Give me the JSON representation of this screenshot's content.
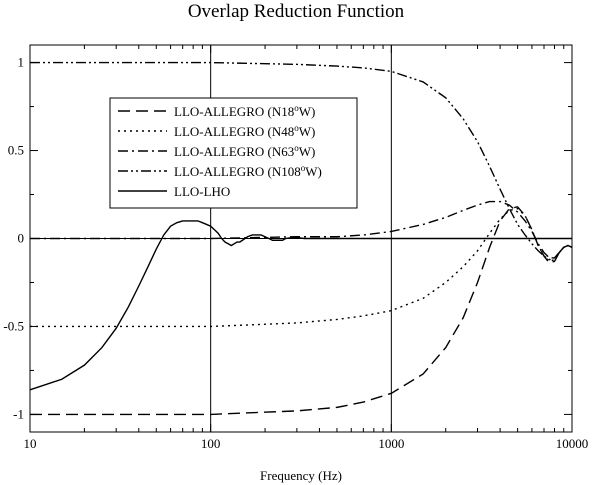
{
  "chart_data": {
    "type": "line",
    "title": "Overlap Reduction Function",
    "xlabel": "Frequency (Hz)",
    "ylabel": "",
    "xscale": "log",
    "xlim": [
      10,
      10000
    ],
    "ylim": [
      -1.1,
      1.1
    ],
    "x_ticks": [
      10,
      100,
      1000,
      10000
    ],
    "x_tick_labels": [
      "10",
      "100",
      "1000",
      "10000"
    ],
    "y_ticks": [
      -1,
      -0.5,
      0,
      0.5,
      1
    ],
    "y_tick_labels": [
      "-1",
      "-0.5",
      "0",
      "0.5",
      "1"
    ],
    "vertical_lines": [
      100,
      1000
    ],
    "zero_line": true,
    "legend_position": "upper-left",
    "series": [
      {
        "name": "LLO-ALLEGRO (N18°W)",
        "label_main": "LLO-ALLEGRO (N18",
        "label_sup": "o",
        "label_tail": "W)",
        "dash": "dashed",
        "x": [
          10,
          100,
          300,
          500,
          700,
          1000,
          1500,
          2000,
          2500,
          3000,
          3500,
          4000,
          4500,
          5000,
          5500,
          6000,
          6500,
          7000,
          7500,
          8000,
          8500,
          9000,
          9500,
          10000
        ],
        "y": [
          -1.0,
          -1.0,
          -0.98,
          -0.96,
          -0.93,
          -0.88,
          -0.77,
          -0.62,
          -0.45,
          -0.25,
          -0.05,
          0.1,
          0.17,
          0.18,
          0.13,
          0.05,
          -0.04,
          -0.1,
          -0.14,
          -0.13,
          -0.08,
          -0.05,
          -0.04,
          -0.05
        ]
      },
      {
        "name": "LLO-ALLEGRO (N48°W)",
        "label_main": "LLO-ALLEGRO (N48",
        "label_sup": "o",
        "label_tail": "W)",
        "dash": "dotted",
        "x": [
          10,
          100,
          300,
          500,
          700,
          1000,
          1500,
          2000,
          2500,
          3000,
          3500,
          4000,
          4500,
          5000,
          5500,
          6000,
          6500,
          7000,
          7500,
          8000,
          8500,
          9000,
          9500,
          10000
        ],
        "y": [
          -0.5,
          -0.5,
          -0.48,
          -0.46,
          -0.44,
          -0.41,
          -0.34,
          -0.25,
          -0.16,
          -0.07,
          0.03,
          0.11,
          0.16,
          0.17,
          0.13,
          0.05,
          -0.04,
          -0.1,
          -0.13,
          -0.12,
          -0.08,
          -0.05,
          -0.04,
          -0.05
        ]
      },
      {
        "name": "LLO-ALLEGRO (N63°W)",
        "label_main": "LLO-ALLEGRO (N63",
        "label_sup": "o",
        "label_tail": "W)",
        "dash": "dash-dot",
        "x": [
          10,
          100,
          300,
          500,
          700,
          1000,
          1500,
          2000,
          2500,
          3000,
          3500,
          4000,
          4500,
          5000,
          5500,
          6000,
          6500,
          7000,
          7500,
          8000,
          8500,
          9000,
          9500,
          10000
        ],
        "y": [
          0.0,
          0.0,
          0.01,
          0.01,
          0.02,
          0.04,
          0.08,
          0.12,
          0.16,
          0.19,
          0.21,
          0.21,
          0.19,
          0.15,
          0.1,
          0.04,
          -0.03,
          -0.08,
          -0.11,
          -0.11,
          -0.08,
          -0.05,
          -0.04,
          -0.05
        ]
      },
      {
        "name": "LLO-ALLEGRO (N108°W)",
        "label_main": "LLO-ALLEGRO (N108",
        "label_sup": "o",
        "label_tail": "W)",
        "dash": "dash-dot-dot",
        "x": [
          10,
          100,
          300,
          500,
          700,
          1000,
          1500,
          2000,
          2500,
          3000,
          3500,
          4000,
          4500,
          5000,
          5500,
          6000,
          6500,
          7000,
          7500,
          8000,
          8500,
          9000,
          9500,
          10000
        ],
        "y": [
          1.0,
          1.0,
          0.99,
          0.98,
          0.97,
          0.95,
          0.89,
          0.8,
          0.68,
          0.55,
          0.41,
          0.28,
          0.17,
          0.08,
          0.02,
          -0.03,
          -0.07,
          -0.1,
          -0.12,
          -0.11,
          -0.08,
          -0.05,
          -0.04,
          -0.05
        ]
      },
      {
        "name": "LLO-LHO",
        "label_main": "LLO-LHO",
        "label_sup": "",
        "label_tail": "",
        "dash": "solid",
        "x": [
          10,
          15,
          20,
          25,
          30,
          35,
          40,
          45,
          50,
          55,
          60,
          65,
          70,
          75,
          80,
          85,
          90,
          95,
          100,
          105,
          110,
          115,
          120,
          125,
          130,
          135,
          140,
          145,
          150,
          160,
          170,
          180,
          190,
          200,
          210,
          220,
          230,
          240,
          250,
          260,
          280,
          300,
          330,
          360,
          400,
          450,
          500,
          600,
          700,
          1000,
          2000,
          5000,
          10000
        ],
        "y": [
          -0.86,
          -0.8,
          -0.72,
          -0.62,
          -0.51,
          -0.39,
          -0.27,
          -0.16,
          -0.06,
          0.02,
          0.07,
          0.09,
          0.1,
          0.1,
          0.1,
          0.1,
          0.09,
          0.08,
          0.07,
          0.05,
          0.03,
          0.0,
          -0.02,
          -0.03,
          -0.04,
          -0.03,
          -0.02,
          -0.02,
          -0.01,
          0.01,
          0.02,
          0.02,
          0.02,
          0.01,
          0.0,
          -0.01,
          -0.01,
          -0.01,
          -0.01,
          0.0,
          0.005,
          0.005,
          0.0,
          0.0,
          0.0,
          0.0,
          0.0,
          0.0,
          0.0,
          0.0,
          0.0,
          0.0,
          0.0
        ]
      }
    ]
  }
}
